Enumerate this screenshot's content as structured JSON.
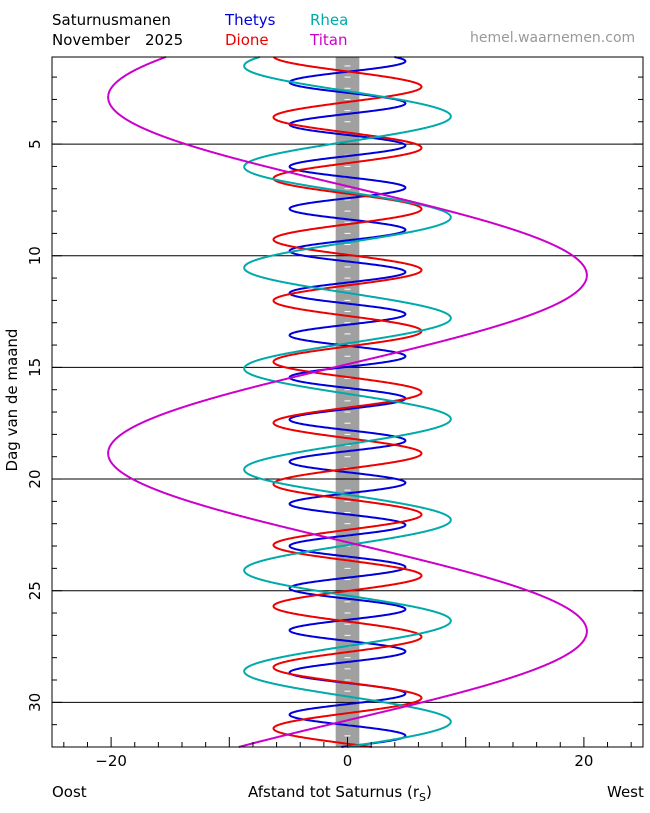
{
  "header": {
    "title": "Saturnusmanen",
    "subtitle_month": "November",
    "subtitle_year": "2025",
    "source": "hemel.waarnemen.com"
  },
  "footer": {
    "left": "Oost",
    "xlabel_main": "Afstand tot Saturnus (r",
    "xlabel_sub": "S",
    "xlabel_close": ")",
    "right": "West"
  },
  "chart_data": {
    "type": "line",
    "title": "Saturnusmanen",
    "xlabel": "Afstand tot Saturnus (rS)",
    "ylabel": "Dag van de maand",
    "xlim": [
      -25,
      25
    ],
    "ylim": [
      32,
      1.1
    ],
    "x_ticks": [
      -20,
      0,
      20
    ],
    "x_tick_labels": [
      "−20",
      "0",
      "20"
    ],
    "y_ticks": [
      5,
      10,
      15,
      20,
      25,
      30
    ],
    "y_tick_labels": [
      "5",
      "10",
      "15",
      "20",
      "25",
      "30"
    ],
    "grid": "horizontal lines every 5 days",
    "planet_band": {
      "from": -1,
      "to": 1,
      "color": "#a0a0a0"
    },
    "series": [
      {
        "name": "Thetys",
        "color": "#0000dd",
        "amplitude": 4.9,
        "period_days": 1.888,
        "east_max_day": 4.12,
        "ellipse_b": 0.5
      },
      {
        "name": "Dione",
        "color": "#ee0000",
        "amplitude": 6.26,
        "period_days": 2.737,
        "east_max_day": 3.8,
        "ellipse_b": 0.65
      },
      {
        "name": "Rhea",
        "color": "#00aaaa",
        "amplitude": 8.74,
        "period_days": 4.518,
        "east_max_day": 1.5,
        "ellipse_b": 0.9
      },
      {
        "name": "Titan",
        "color": "#cc00cc",
        "amplitude": 20.25,
        "period_days": 15.945,
        "east_max_day": 2.9,
        "ellipse_b": 2.0
      }
    ]
  }
}
